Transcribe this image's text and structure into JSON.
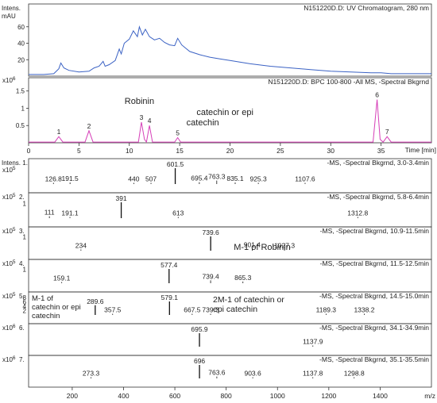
{
  "chart_data": [
    {
      "type": "line",
      "y_unit_label": [
        "Intens.",
        "mAU"
      ],
      "y_ticks": [
        20,
        40,
        60
      ],
      "ylim": [
        0,
        80
      ],
      "xlim": [
        0,
        40
      ],
      "header": "N151220D.D: UV Chromatogram, 280 nm",
      "grid": false,
      "series": [
        {
          "color": "#3b62c4",
          "x": [
            0,
            1.5,
            2.5,
            3.0,
            3.2,
            3.5,
            4.0,
            5.0,
            6.0,
            6.5,
            7.0,
            7.4,
            7.6,
            8.0,
            8.6,
            9.0,
            9.2,
            9.5,
            10.0,
            10.4,
            10.8,
            11.0,
            11.3,
            11.6,
            12.0,
            12.5,
            13.0,
            13.5,
            14.0,
            14.5,
            14.8,
            15.2,
            15.6,
            16.0,
            17.0,
            18.0,
            19.0,
            20.0,
            22.0,
            24.0,
            26.0,
            28.0,
            30.0,
            32.0,
            34.0,
            35.0,
            36.0,
            38.0,
            40.0
          ],
          "y": [
            2,
            2,
            3,
            9,
            16,
            10,
            7,
            5,
            6,
            10,
            12,
            18,
            12,
            14,
            19,
            33,
            27,
            40,
            45,
            55,
            48,
            60,
            50,
            57,
            48,
            44,
            46,
            41,
            38,
            37,
            46,
            38,
            34,
            30,
            26,
            23,
            21,
            19,
            15,
            12,
            10,
            8,
            6,
            5,
            4,
            4,
            3,
            3,
            3
          ]
        }
      ]
    },
    {
      "type": "line",
      "y_unit_label": [
        "x10^6"
      ],
      "y_ticks": [
        0.5,
        1.0,
        1.5
      ],
      "ylim": [
        0,
        1.7
      ],
      "xlim": [
        0,
        40
      ],
      "header": "N151220D.D: BPC 100-800 -All MS, -Spectral Bkgrnd",
      "xlabel": "Time [min]",
      "x_ticks": [
        0,
        5,
        10,
        15,
        20,
        25,
        30,
        35
      ],
      "grid": false,
      "series": [
        {
          "color": "#d63fb8",
          "x": [
            0,
            2.6,
            3.0,
            3.4,
            5.6,
            6.0,
            6.4,
            10.9,
            11.2,
            11.5,
            11.7,
            12.0,
            12.3,
            14.5,
            14.8,
            15.1,
            34.2,
            34.6,
            34.9,
            35.2,
            35.6,
            36.0,
            40.0
          ],
          "y": [
            0.02,
            0.02,
            0.18,
            0.02,
            0.02,
            0.35,
            0.02,
            0.02,
            0.6,
            0.1,
            0.02,
            0.5,
            0.02,
            0.02,
            0.15,
            0.02,
            0.02,
            1.25,
            0.1,
            0.02,
            0.18,
            0.02,
            0.02
          ]
        }
      ],
      "peak_labels": [
        {
          "label": "1",
          "x": 3.0
        },
        {
          "label": "2",
          "x": 6.0
        },
        {
          "label": "3",
          "x": 11.2
        },
        {
          "label": "4",
          "x": 12.0
        },
        {
          "label": "5",
          "x": 14.8
        },
        {
          "label": "6",
          "x": 34.6
        },
        {
          "label": "7",
          "x": 35.6
        }
      ],
      "annotations": [
        {
          "text": "Robinin",
          "x": 11.0
        },
        {
          "text": "catechin or epi",
          "x": 19.5
        },
        {
          "text": "catechin",
          "x": 19.5
        }
      ]
    },
    {
      "type": "bar",
      "subtype": "mass-spectra-stack",
      "xlabel": "m/z",
      "xlim": [
        30,
        1600
      ],
      "x_ticks": [
        200,
        400,
        600,
        800,
        1000,
        1200,
        1400
      ],
      "panels": [
        {
          "index": "1.",
          "y_unit_label": "x10^5",
          "y_ticks": [],
          "title": "-MS, -Spectral Bkgrnd, 3.0-3.4min",
          "peaks": [
            {
              "mz": 126.8,
              "rel": 0.08
            },
            {
              "mz": 191.5,
              "rel": 0.1
            },
            {
              "mz": 440.0,
              "rel": 0.04
            },
            {
              "mz": 507.0,
              "rel": 0.05
            },
            {
              "mz": 601.5,
              "rel": 1.0
            },
            {
              "mz": 695.4,
              "rel": 0.12
            },
            {
              "mz": 763.3,
              "rel": 0.22
            },
            {
              "mz": 835.1,
              "rel": 0.1
            },
            {
              "mz": 925.3,
              "rel": 0.08
            },
            {
              "mz": 1107.6,
              "rel": 0.05
            }
          ]
        },
        {
          "index": "2.",
          "y_unit_label": "x10^5",
          "y_ticks": [
            "1"
          ],
          "title": "-MS, -Spectral Bkgrnd, 5.8-6.4min",
          "peaks": [
            {
              "mz": 111.0,
              "rel": 0.12
            },
            {
              "mz": 191.1,
              "rel": 0.06
            },
            {
              "mz": 391.0,
              "rel": 1.0
            },
            {
              "mz": 613.0,
              "rel": 0.06
            },
            {
              "mz": 1312.8,
              "rel": 0.05
            }
          ]
        },
        {
          "index": "3.",
          "y_unit_label": "x10^5",
          "y_ticks": [
            "1"
          ],
          "title": "-MS, -Spectral Bkgrnd, 10.9-11.5min",
          "peaks": [
            {
              "mz": 234.0,
              "rel": 0.05
            },
            {
              "mz": 739.6,
              "rel": 1.0
            },
            {
              "mz": 901.4,
              "rel": 0.15
            },
            {
              "mz": 1027.3,
              "rel": 0.05
            }
          ],
          "annotation": "M-1 of Robinin"
        },
        {
          "index": "4.",
          "y_unit_label": "x10^5",
          "y_ticks": [
            "1"
          ],
          "title": "-MS, -Spectral Bkgrnd, 11.5-12.5min",
          "peaks": [
            {
              "mz": 159.1,
              "rel": 0.06
            },
            {
              "mz": 577.4,
              "rel": 1.0
            },
            {
              "mz": 739.4,
              "rel": 0.2
            },
            {
              "mz": 865.3,
              "rel": 0.12
            }
          ]
        },
        {
          "index": "5.",
          "y_unit_label": "x10^5",
          "y_ticks": [
            "2",
            "4",
            "6",
            "8"
          ],
          "title": "-MS, -Spectral Bkgrnd, 14.5-15.0min",
          "peaks": [
            {
              "mz": 289.6,
              "rel": 0.72
            },
            {
              "mz": 357.5,
              "rel": 0.08
            },
            {
              "mz": 579.1,
              "rel": 1.0
            },
            {
              "mz": 667.5,
              "rel": 0.05
            },
            {
              "mz": 739.3,
              "rel": 0.05
            },
            {
              "mz": 1189.3,
              "rel": 0.05
            },
            {
              "mz": 1338.2,
              "rel": 0.05
            }
          ],
          "annotations": [
            "M-1 of",
            "catechin or epi",
            "catechin",
            "2M-1 of catechin or",
            "epi catechin"
          ]
        },
        {
          "index": "6.",
          "y_unit_label": "x10^6",
          "y_ticks": [],
          "title": "-MS, -Spectral Bkgrnd, 34.1-34.9min",
          "peaks": [
            {
              "mz": 695.9,
              "rel": 1.0
            },
            {
              "mz": 1137.9,
              "rel": 0.05
            }
          ]
        },
        {
          "index": "7.",
          "y_unit_label": "x10^6",
          "y_ticks": [],
          "title": "-MS, -Spectral Bkgrnd, 35.1-35.5min",
          "peaks": [
            {
              "mz": 273.3,
              "rel": 0.05
            },
            {
              "mz": 696.0,
              "rel": 1.0
            },
            {
              "mz": 763.6,
              "rel": 0.14
            },
            {
              "mz": 903.6,
              "rel": 0.06
            },
            {
              "mz": 1137.8,
              "rel": 0.05
            },
            {
              "mz": 1298.8,
              "rel": 0.05
            }
          ]
        }
      ]
    }
  ]
}
